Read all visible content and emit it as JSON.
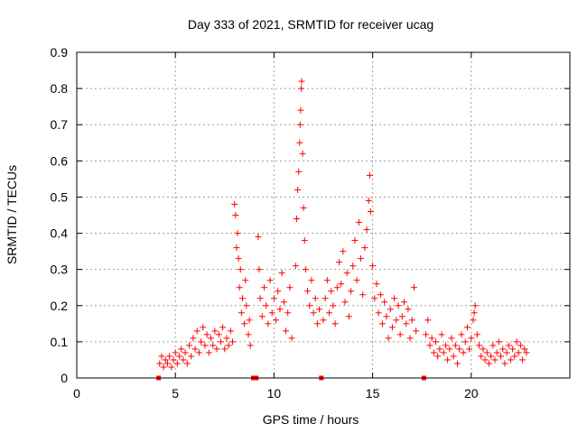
{
  "chart_data": {
    "type": "scatter",
    "title": "Day 333 of 2021, SRMTID for receiver ucag",
    "xlabel": "GPS time / hours",
    "ylabel": "SRMTID / TECUs",
    "xlim": [
      0,
      25
    ],
    "ylim": [
      0,
      0.9
    ],
    "xticks": [
      0,
      5,
      10,
      15,
      20
    ],
    "yticks": [
      0,
      0.1,
      0.2,
      0.3,
      0.4,
      0.5,
      0.6,
      0.7,
      0.8,
      0.9
    ],
    "ytick_labels": [
      "0",
      "0.1",
      "0.2",
      "0.3",
      "0.4",
      "0.5",
      "0.6",
      "0.7",
      "0.8",
      "0.9"
    ],
    "grid": true,
    "marker": "+",
    "color": "#ff0000",
    "gap_markers": [
      4.15,
      8.95,
      9.1,
      12.4,
      17.6
    ],
    "series": [
      {
        "name": "SRMTID",
        "points": [
          [
            4.2,
            0.04
          ],
          [
            4.3,
            0.06
          ],
          [
            4.4,
            0.03
          ],
          [
            4.5,
            0.05
          ],
          [
            4.6,
            0.04
          ],
          [
            4.7,
            0.06
          ],
          [
            4.8,
            0.03
          ],
          [
            4.9,
            0.05
          ],
          [
            5.0,
            0.07
          ],
          [
            5.1,
            0.04
          ],
          [
            5.2,
            0.06
          ],
          [
            5.3,
            0.08
          ],
          [
            5.4,
            0.05
          ],
          [
            5.5,
            0.07
          ],
          [
            5.6,
            0.04
          ],
          [
            5.7,
            0.09
          ],
          [
            5.8,
            0.06
          ],
          [
            5.9,
            0.11
          ],
          [
            6.0,
            0.08
          ],
          [
            6.1,
            0.13
          ],
          [
            6.2,
            0.07
          ],
          [
            6.3,
            0.1
          ],
          [
            6.4,
            0.14
          ],
          [
            6.5,
            0.09
          ],
          [
            6.6,
            0.12
          ],
          [
            6.7,
            0.07
          ],
          [
            6.8,
            0.11
          ],
          [
            6.9,
            0.09
          ],
          [
            7.0,
            0.13
          ],
          [
            7.1,
            0.08
          ],
          [
            7.2,
            0.12
          ],
          [
            7.3,
            0.1
          ],
          [
            7.4,
            0.14
          ],
          [
            7.5,
            0.08
          ],
          [
            7.6,
            0.11
          ],
          [
            7.7,
            0.09
          ],
          [
            7.8,
            0.13
          ],
          [
            7.9,
            0.1
          ],
          [
            8.0,
            0.48
          ],
          [
            8.05,
            0.45
          ],
          [
            8.1,
            0.36
          ],
          [
            8.15,
            0.4
          ],
          [
            8.2,
            0.33
          ],
          [
            8.25,
            0.25
          ],
          [
            8.3,
            0.3
          ],
          [
            8.35,
            0.18
          ],
          [
            8.4,
            0.22
          ],
          [
            8.5,
            0.15
          ],
          [
            8.55,
            0.27
          ],
          [
            8.6,
            0.2
          ],
          [
            8.7,
            0.12
          ],
          [
            8.75,
            0.16
          ],
          [
            8.8,
            0.09
          ],
          [
            9.2,
            0.39
          ],
          [
            9.25,
            0.3
          ],
          [
            9.3,
            0.22
          ],
          [
            9.4,
            0.17
          ],
          [
            9.5,
            0.25
          ],
          [
            9.6,
            0.2
          ],
          [
            9.7,
            0.15
          ],
          [
            9.8,
            0.27
          ],
          [
            9.9,
            0.18
          ],
          [
            10.0,
            0.22
          ],
          [
            10.1,
            0.16
          ],
          [
            10.2,
            0.24
          ],
          [
            10.3,
            0.19
          ],
          [
            10.4,
            0.29
          ],
          [
            10.5,
            0.21
          ],
          [
            10.6,
            0.13
          ],
          [
            10.7,
            0.18
          ],
          [
            10.8,
            0.25
          ],
          [
            10.9,
            0.11
          ],
          [
            11.1,
            0.31
          ],
          [
            11.15,
            0.44
          ],
          [
            11.2,
            0.52
          ],
          [
            11.25,
            0.57
          ],
          [
            11.3,
            0.65
          ],
          [
            11.32,
            0.7
          ],
          [
            11.35,
            0.74
          ],
          [
            11.38,
            0.8
          ],
          [
            11.4,
            0.82
          ],
          [
            11.45,
            0.62
          ],
          [
            11.5,
            0.47
          ],
          [
            11.55,
            0.38
          ],
          [
            11.6,
            0.3
          ],
          [
            11.7,
            0.24
          ],
          [
            11.8,
            0.2
          ],
          [
            11.9,
            0.27
          ],
          [
            12.0,
            0.18
          ],
          [
            12.1,
            0.22
          ],
          [
            12.2,
            0.15
          ],
          [
            12.3,
            0.19
          ],
          [
            12.5,
            0.16
          ],
          [
            12.6,
            0.22
          ],
          [
            12.7,
            0.27
          ],
          [
            12.8,
            0.18
          ],
          [
            12.9,
            0.24
          ],
          [
            13.0,
            0.2
          ],
          [
            13.1,
            0.15
          ],
          [
            13.2,
            0.25
          ],
          [
            13.3,
            0.32
          ],
          [
            13.4,
            0.26
          ],
          [
            13.5,
            0.35
          ],
          [
            13.6,
            0.21
          ],
          [
            13.7,
            0.29
          ],
          [
            13.8,
            0.17
          ],
          [
            13.9,
            0.24
          ],
          [
            14.0,
            0.31
          ],
          [
            14.1,
            0.38
          ],
          [
            14.2,
            0.27
          ],
          [
            14.3,
            0.43
          ],
          [
            14.4,
            0.33
          ],
          [
            14.5,
            0.23
          ],
          [
            14.6,
            0.36
          ],
          [
            14.7,
            0.41
          ],
          [
            14.8,
            0.49
          ],
          [
            14.85,
            0.56
          ],
          [
            14.9,
            0.46
          ],
          [
            15.0,
            0.31
          ],
          [
            15.1,
            0.22
          ],
          [
            15.2,
            0.26
          ],
          [
            15.3,
            0.18
          ],
          [
            15.4,
            0.23
          ],
          [
            15.5,
            0.15
          ],
          [
            15.6,
            0.21
          ],
          [
            15.7,
            0.17
          ],
          [
            15.8,
            0.11
          ],
          [
            15.9,
            0.19
          ],
          [
            16.0,
            0.14
          ],
          [
            16.1,
            0.22
          ],
          [
            16.2,
            0.16
          ],
          [
            16.3,
            0.2
          ],
          [
            16.4,
            0.12
          ],
          [
            16.5,
            0.17
          ],
          [
            16.6,
            0.21
          ],
          [
            16.7,
            0.15
          ],
          [
            16.8,
            0.19
          ],
          [
            16.9,
            0.11
          ],
          [
            17.0,
            0.16
          ],
          [
            17.1,
            0.25
          ],
          [
            17.2,
            0.13
          ],
          [
            17.7,
            0.12
          ],
          [
            17.8,
            0.16
          ],
          [
            17.9,
            0.09
          ],
          [
            18.0,
            0.11
          ],
          [
            18.1,
            0.07
          ],
          [
            18.2,
            0.1
          ],
          [
            18.3,
            0.06
          ],
          [
            18.4,
            0.08
          ],
          [
            18.5,
            0.12
          ],
          [
            18.6,
            0.07
          ],
          [
            18.7,
            0.09
          ],
          [
            18.8,
            0.05
          ],
          [
            18.9,
            0.08
          ],
          [
            19.0,
            0.11
          ],
          [
            19.1,
            0.06
          ],
          [
            19.2,
            0.09
          ],
          [
            19.3,
            0.04
          ],
          [
            19.4,
            0.08
          ],
          [
            19.5,
            0.12
          ],
          [
            19.6,
            0.07
          ],
          [
            19.7,
            0.1
          ],
          [
            19.8,
            0.14
          ],
          [
            19.9,
            0.08
          ],
          [
            20.0,
            0.11
          ],
          [
            20.1,
            0.16
          ],
          [
            20.15,
            0.18
          ],
          [
            20.2,
            0.2
          ],
          [
            20.3,
            0.12
          ],
          [
            20.4,
            0.09
          ],
          [
            20.5,
            0.06
          ],
          [
            20.6,
            0.08
          ],
          [
            20.7,
            0.05
          ],
          [
            20.8,
            0.07
          ],
          [
            20.9,
            0.04
          ],
          [
            21.0,
            0.06
          ],
          [
            21.1,
            0.09
          ],
          [
            21.2,
            0.05
          ],
          [
            21.3,
            0.07
          ],
          [
            21.4,
            0.1
          ],
          [
            21.5,
            0.06
          ],
          [
            21.6,
            0.08
          ],
          [
            21.7,
            0.04
          ],
          [
            21.8,
            0.07
          ],
          [
            21.9,
            0.09
          ],
          [
            22.0,
            0.05
          ],
          [
            22.1,
            0.08
          ],
          [
            22.2,
            0.06
          ],
          [
            22.3,
            0.1
          ],
          [
            22.4,
            0.07
          ],
          [
            22.5,
            0.09
          ],
          [
            22.6,
            0.05
          ],
          [
            22.7,
            0.08
          ],
          [
            22.8,
            0.07
          ]
        ]
      }
    ]
  }
}
